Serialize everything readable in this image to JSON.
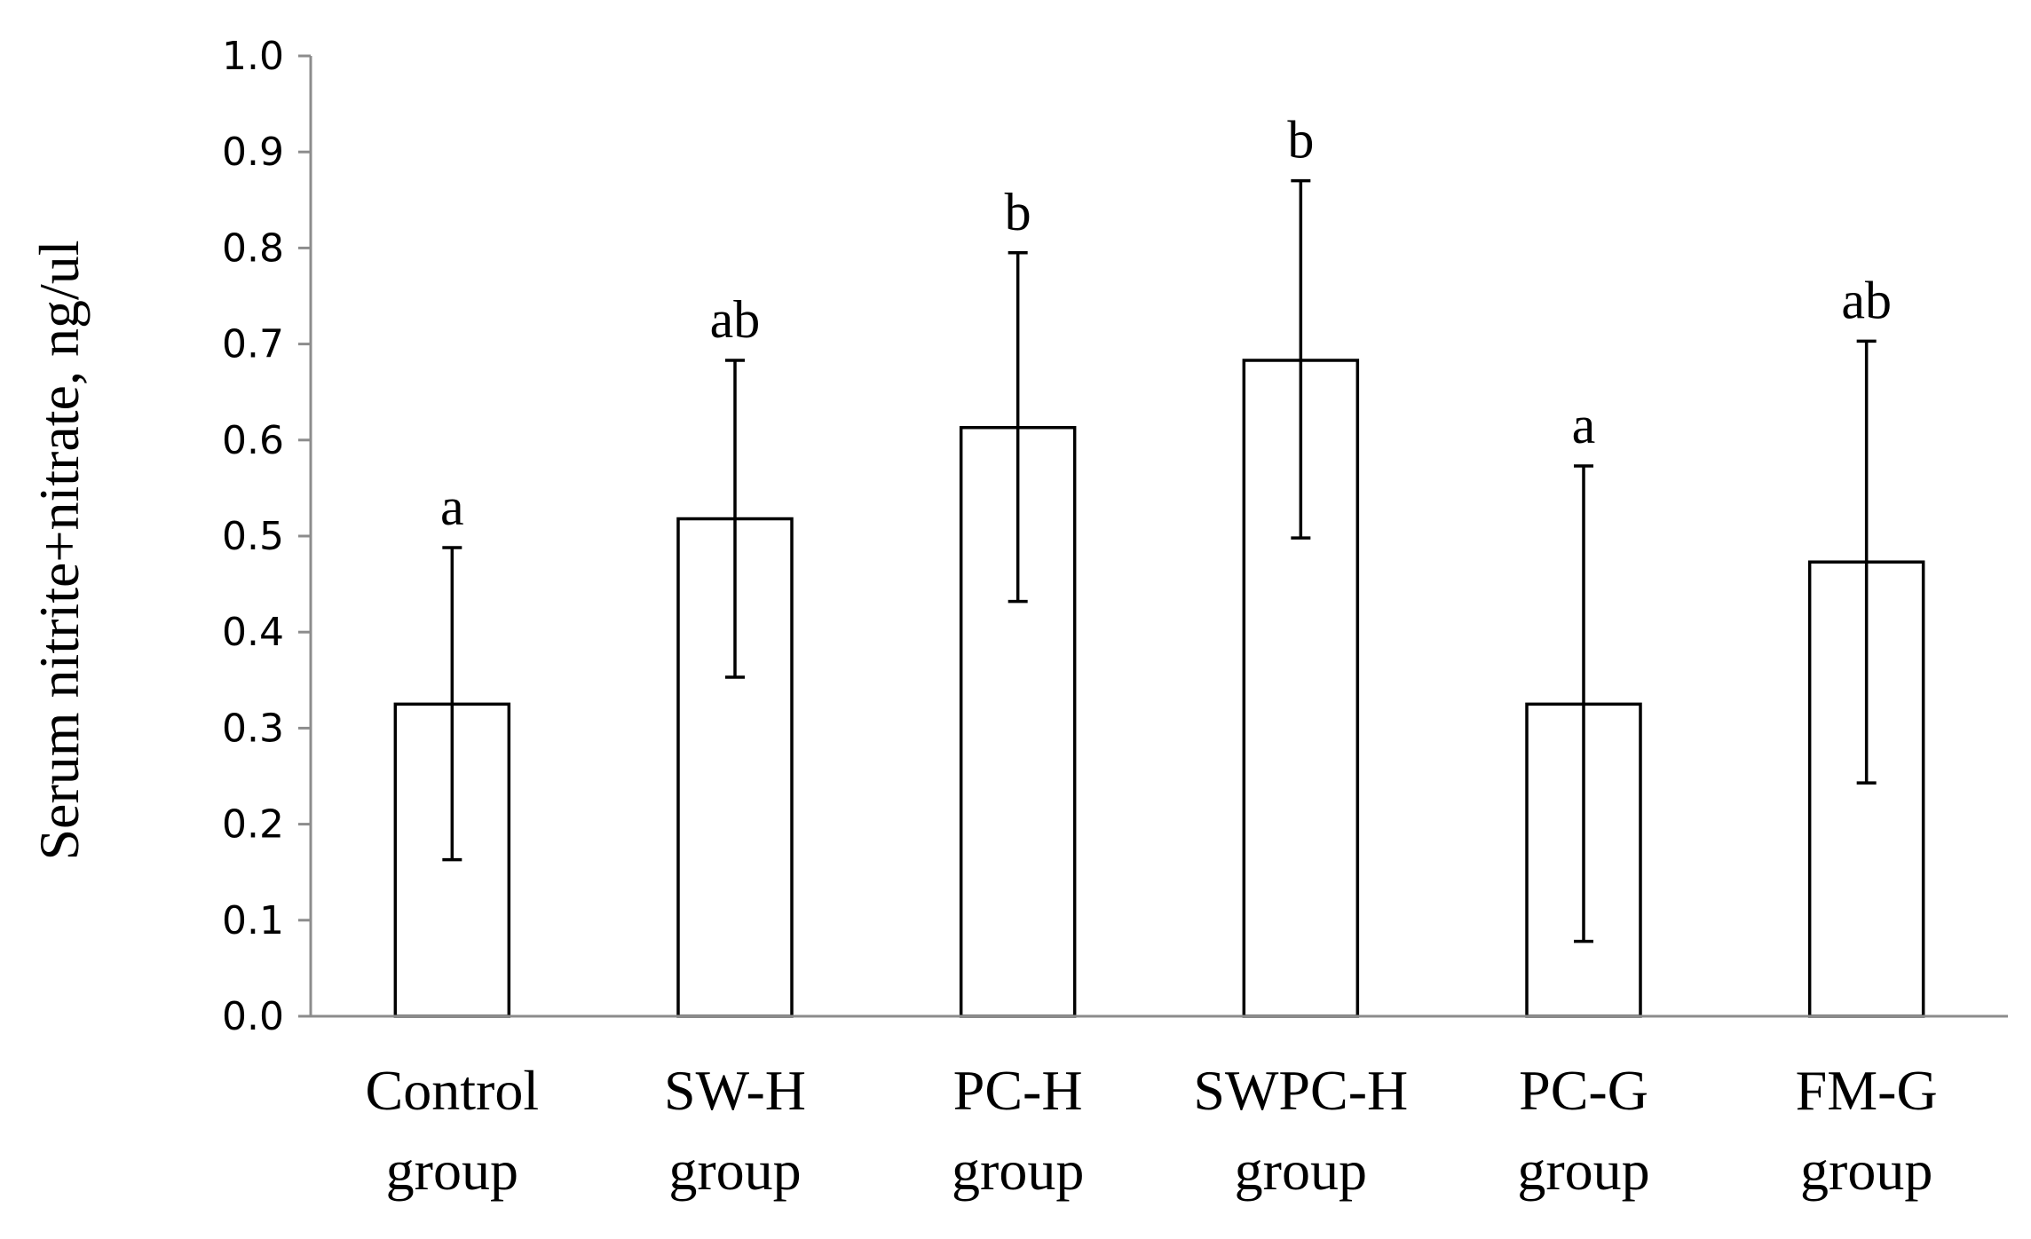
{
  "chart_data": {
    "type": "bar",
    "title": "",
    "xlabel": "",
    "ylabel": "Serum nitrite+nitrate, ng/ul",
    "ylim": [
      0,
      1.0
    ],
    "yticks": [
      "0.0",
      "0.1",
      "0.2",
      "0.3",
      "0.4",
      "0.5",
      "0.6",
      "0.7",
      "0.8",
      "0.9",
      "1.0"
    ],
    "grid": false,
    "categories": [
      [
        "Control",
        "group"
      ],
      [
        "SW-H",
        "group"
      ],
      [
        "PC-H",
        "group"
      ],
      [
        "SWPC-H",
        "group"
      ],
      [
        "PC-G",
        "group"
      ],
      [
        "FM-G",
        "group"
      ]
    ],
    "values": [
      0.325,
      0.518,
      0.613,
      0.683,
      0.325,
      0.473
    ],
    "error_high": [
      0.488,
      0.683,
      0.795,
      0.87,
      0.573,
      0.703
    ],
    "error_low": [
      0.163,
      0.353,
      0.432,
      0.498,
      0.078,
      0.243
    ],
    "significance": [
      "a",
      "ab",
      "b",
      "b",
      "a",
      "ab"
    ]
  }
}
